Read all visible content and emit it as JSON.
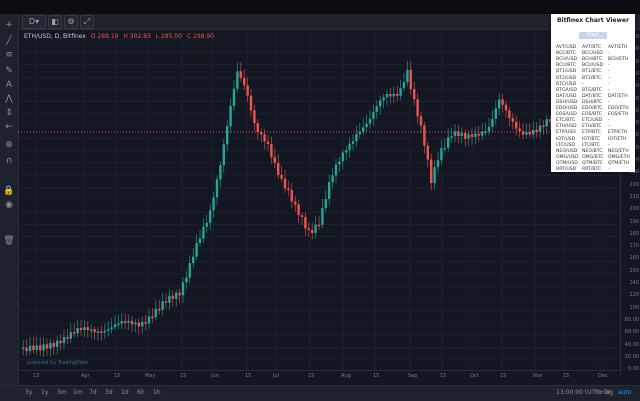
{
  "toolbar": {
    "interval_label": "D",
    "buttons": [
      "chart-type",
      "settings",
      "fullscreen"
    ]
  },
  "left_tools": [
    "crosshair-icon",
    "trend-line-icon",
    "fib-icon",
    "brush-icon",
    "text-icon",
    "pattern-icon",
    "measure-icon",
    "arrow-icon",
    "zoom-icon",
    "magnet-icon",
    "lock-icon",
    "eye-icon",
    "trash-icon"
  ],
  "legend": {
    "symbol": "ETH/USD, D, Bitfinex",
    "values": [
      "O 288.19",
      "H 302.83",
      "L 285.00",
      "C 298.90"
    ]
  },
  "price_axis": [
    "340",
    "330",
    "320",
    "310",
    "300",
    "290",
    "280",
    "270",
    "260",
    "250",
    "240",
    "230",
    "220",
    "210",
    "200",
    "190",
    "180",
    "170",
    "160",
    "150",
    "140",
    "120",
    "100",
    "80.00",
    "60.00",
    "40.00",
    "20.00",
    "0.00"
  ],
  "time_axis": [
    "13",
    "Apr",
    "15",
    "May",
    "15",
    "Jun",
    "15",
    "Jul",
    "15",
    "Aug",
    "15",
    "Sep",
    "15",
    "Oct",
    "15",
    "Nov",
    "15",
    "Dec"
  ],
  "range_buttons": [
    "3y",
    "1y",
    "3m",
    "1m",
    "7d",
    "3d",
    "1d",
    "6h",
    "1h"
  ],
  "time_info": {
    "clock": "13:00:00 (UTC+0)",
    "mode_pct": "%",
    "mode_log": "log",
    "mode_auto": "auto"
  },
  "watermark": "powered by TradingView",
  "panel": {
    "title": "Bitfinex Chart Viewer",
    "start_label": "Start",
    "rows": [
      [
        "AVT/USD",
        "AVT/BTC",
        "AVT/ETH"
      ],
      [
        "BCC/BTC",
        "BCC/USD",
        "-"
      ],
      [
        "BCH/USD",
        "BCH/BTC",
        "BCH/ETH"
      ],
      [
        "BCU/BTC",
        "BCU/USD",
        "-"
      ],
      [
        "BT1/USD",
        "BT1/BTC",
        "-"
      ],
      [
        "BT2/USD",
        "BT2/BTC",
        "-"
      ],
      [
        "BTC/USD",
        "-",
        "-"
      ],
      [
        "BTG/USD",
        "BTG/BTC",
        "-"
      ],
      [
        "DAT/USD",
        "DAT/BTC",
        "DAT/ETH"
      ],
      [
        "DSH/USD",
        "DSH/BTC",
        "-"
      ],
      [
        "EDO/USD",
        "EDO/BTC",
        "EDO/ETH"
      ],
      [
        "EOS/USD",
        "EOS/BTC",
        "EOS/ETH"
      ],
      [
        "ETC/BTC",
        "ETC/USD",
        "-"
      ],
      [
        "ETH/USD",
        "ETH/BTC",
        "-"
      ],
      [
        "ETP/USD",
        "ETP/BTC",
        "ETP/ETH"
      ],
      [
        "IOT/USD",
        "IOT/BTC",
        "IOT/ETH"
      ],
      [
        "LTC/USD",
        "LTC/BTC",
        "-"
      ],
      [
        "NEO/USD",
        "NEO/BTC",
        "NEO/ETH"
      ],
      [
        "OMG/USD",
        "OMG/BTC",
        "OMG/ETH"
      ],
      [
        "QTM/USD",
        "QTM/BTC",
        "QTM/ETH"
      ],
      [
        "RRT/USD",
        "RRT/BTC",
        "-"
      ]
    ]
  },
  "colors": {
    "up": "#26a69a",
    "down": "#ef5350",
    "background": "#131722"
  }
}
